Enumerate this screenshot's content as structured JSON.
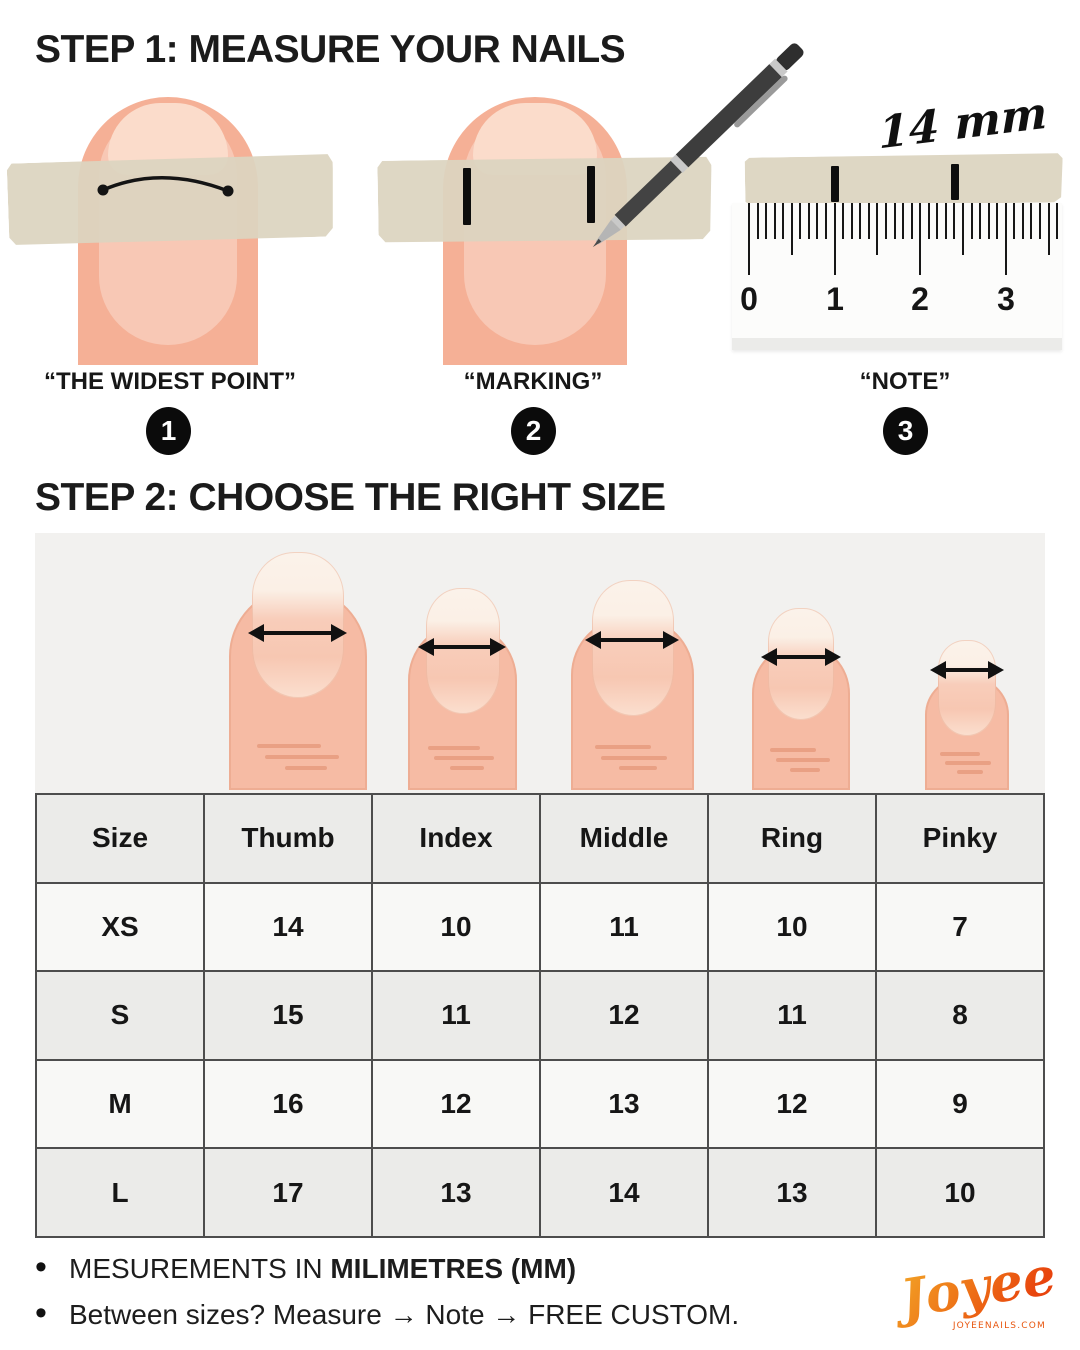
{
  "step1": {
    "title": "STEP 1: MEASURE YOUR NAILS",
    "figures": [
      {
        "caption": "“THE WIDEST POINT”",
        "badge": "1"
      },
      {
        "caption": "“MARKING”",
        "badge": "2"
      },
      {
        "caption": "“NOTE”",
        "badge": "3"
      }
    ],
    "measurement_label": "14 mm",
    "ruler_labels": [
      "0",
      "1",
      "2",
      "3"
    ]
  },
  "step2": {
    "title": "STEP 2: CHOOSE THE RIGHT SIZE",
    "size_chart": {
      "headers": [
        "Size",
        "Thumb",
        "Index",
        "Middle",
        "Ring",
        "Pinky"
      ],
      "rows": [
        {
          "cells": [
            "XS",
            "14",
            "10",
            "11",
            "10",
            "7"
          ]
        },
        {
          "cells": [
            "S",
            "15",
            "11",
            "12",
            "11",
            "8"
          ]
        },
        {
          "cells": [
            "M",
            "16",
            "12",
            "13",
            "12",
            "9"
          ]
        },
        {
          "cells": [
            "L",
            "17",
            "13",
            "14",
            "13",
            "10"
          ]
        }
      ],
      "units": "mm"
    }
  },
  "footer": {
    "note1_prefix": "MESUREMENTS IN ",
    "note1_bold": "MILIMETRES (MM)",
    "note2": "Between sizes? Measure → Note → FREE CUSTOM."
  },
  "brand": {
    "logo_text": "Joyee",
    "logo_sub": "JOYEENAILS.COM",
    "logo_gradient_start": "#f3aa28",
    "logo_gradient_end": "#e8440d",
    "logo_sub_color": "#e8560f"
  },
  "colors": {
    "tape": "#dcd4bf",
    "skin": "#f5b096",
    "panel_bg": "#f2f1ef",
    "table_border": "#4d4d4d",
    "table_row_shade": "#ebebe9",
    "table_row_light": "#f8f8f6"
  }
}
